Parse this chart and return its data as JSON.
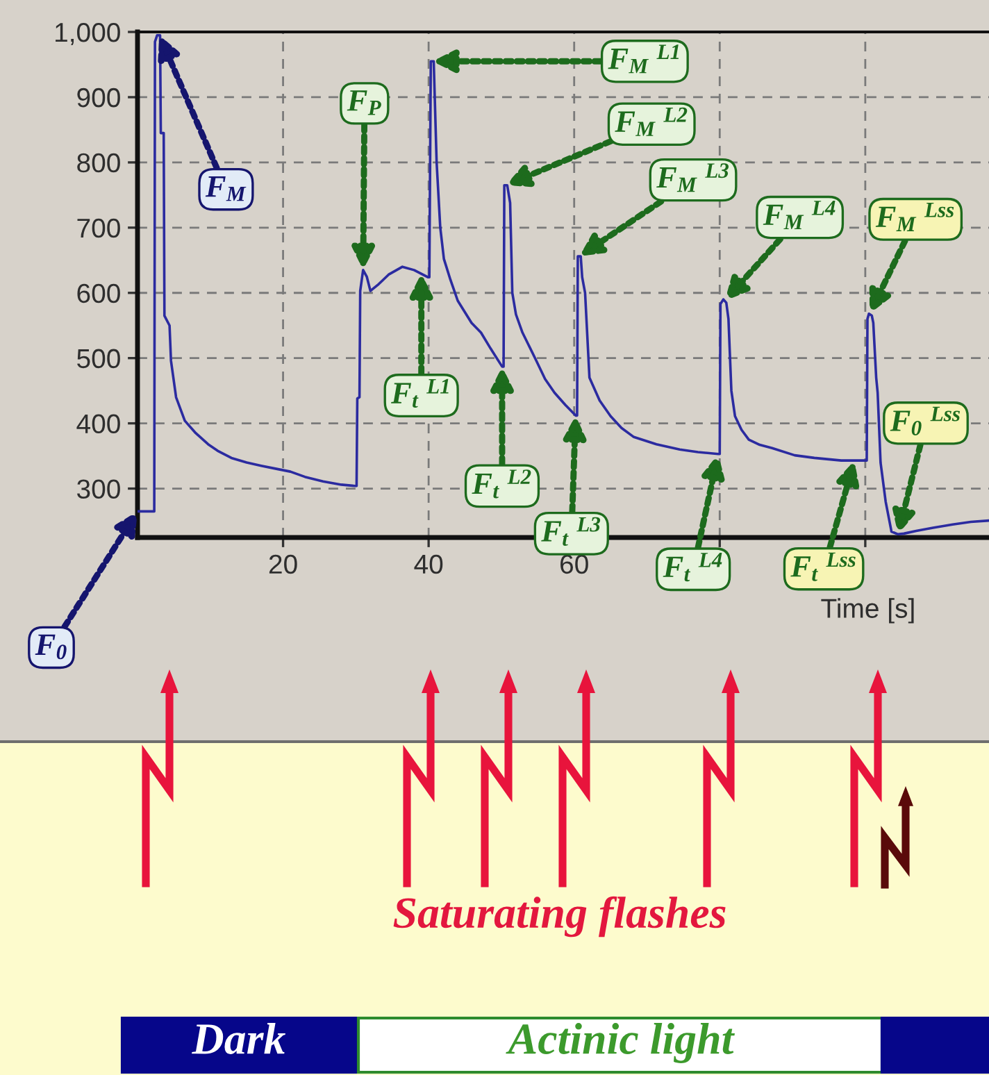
{
  "chart_data": {
    "type": "line",
    "xlabel": "Time [s]",
    "color": "#2b2ba0",
    "x": [
      0,
      2.3,
      2.4,
      2.7,
      3.1,
      3.2,
      3.6,
      3.7,
      4.4,
      4.6,
      5.3,
      6.5,
      8,
      9.7,
      11,
      12.9,
      15,
      17,
      19.2,
      21,
      23,
      25.5,
      28,
      29.9,
      30.1,
      30.2,
      30.5,
      30.6,
      31,
      31.5,
      32,
      33,
      34.5,
      36.4,
      38,
      39.9,
      40.1,
      40.3,
      40.7,
      41.1,
      41.6,
      42.1,
      43,
      44,
      45.9,
      47.2,
      48.5,
      50.1,
      50.3,
      50.4,
      50.8,
      51.2,
      51.5,
      52,
      52.9,
      54.8,
      56,
      57.3,
      58.8,
      60.2,
      60.4,
      60.5,
      60.9,
      61.1,
      61.5,
      62.1,
      62.5,
      63.5,
      65,
      66.5,
      68.2,
      71.3,
      74.5,
      77,
      79.8,
      80,
      80.1,
      80.5,
      80.9,
      81.2,
      81.6,
      82.1,
      83,
      84,
      85.5,
      87.2,
      90.3,
      93,
      96.7,
      100,
      100.2,
      100.3,
      100.5,
      100.9,
      101.1,
      101.5,
      101.7,
      102.1,
      102.8,
      103.6,
      104.5,
      105.3,
      107,
      109.3,
      112,
      114.5,
      117
    ],
    "values": [
      265,
      265,
      985,
      995,
      995,
      845,
      845,
      565,
      550,
      496,
      440,
      404,
      385,
      368,
      358,
      347,
      340,
      335,
      330,
      326,
      318,
      311,
      306,
      304,
      304,
      438,
      440,
      603,
      635,
      625,
      603,
      612,
      628,
      640,
      635,
      624,
      624,
      955,
      955,
      800,
      700,
      652,
      620,
      588,
      554,
      539,
      515,
      487,
      487,
      765,
      765,
      738,
      600,
      567,
      539,
      496,
      468,
      447,
      428,
      412,
      412,
      656,
      656,
      624,
      600,
      470,
      460,
      435,
      411,
      393,
      379,
      368,
      360,
      356,
      353,
      353,
      583,
      590,
      585,
      560,
      450,
      411,
      390,
      375,
      367,
      362,
      351,
      347,
      343,
      343,
      343,
      560,
      568,
      565,
      554,
      470,
      447,
      340,
      280,
      234,
      230,
      231,
      235,
      240,
      245,
      249,
      251
    ],
    "xlim": [
      0,
      117
    ],
    "ylim": [
      225,
      1000
    ],
    "xticks": [
      20,
      40,
      60,
      {
        "value": 80,
        "label": null
      },
      {
        "value": 100,
        "label": null
      }
    ],
    "yticks": [
      300,
      400,
      500,
      600,
      700,
      800,
      900,
      {
        "value": 1000,
        "label": "1,000"
      }
    ],
    "grid": true,
    "annotations": [
      {
        "text": "F$_{0}$",
        "x": 0,
        "y": 265
      },
      {
        "text": "F$_{M}$",
        "x": 3,
        "y": 995
      },
      {
        "text": "F$_{P}$",
        "x": 31,
        "y": 635
      },
      {
        "text": "F$_{t}$ $^{L1}$",
        "x": 39,
        "y": 630
      },
      {
        "text": "F$_{M}$ $^{L1}$",
        "x": 40.5,
        "y": 955
      },
      {
        "text": "F$_{M}$ $^{L2}$",
        "x": 50.6,
        "y": 765
      },
      {
        "text": "F$_{t}$ $^{L2}$",
        "x": 50.1,
        "y": 487
      },
      {
        "text": "F$_{M}$ $^{L3}$",
        "x": 60.7,
        "y": 656
      },
      {
        "text": "F$_{t}$ $^{L3}$",
        "x": 60.2,
        "y": 412
      },
      {
        "text": "F$_{M}$ $^{L4}$",
        "x": 80.7,
        "y": 588
      },
      {
        "text": "F$_{t}$ $^{L4}$",
        "x": 79.8,
        "y": 353
      },
      {
        "text": "F$_{M}$ $^{Lss}$",
        "x": 100.6,
        "y": 568
      },
      {
        "text": "F$_{t}$ $^{Lss}$",
        "x": 98.5,
        "y": 343
      },
      {
        "text": "F$_{0}$ $^{Lss}$",
        "x": 104.5,
        "y": 230
      },
      "Saturating flashes",
      "Dark",
      "Actinic light"
    ]
  }
}
